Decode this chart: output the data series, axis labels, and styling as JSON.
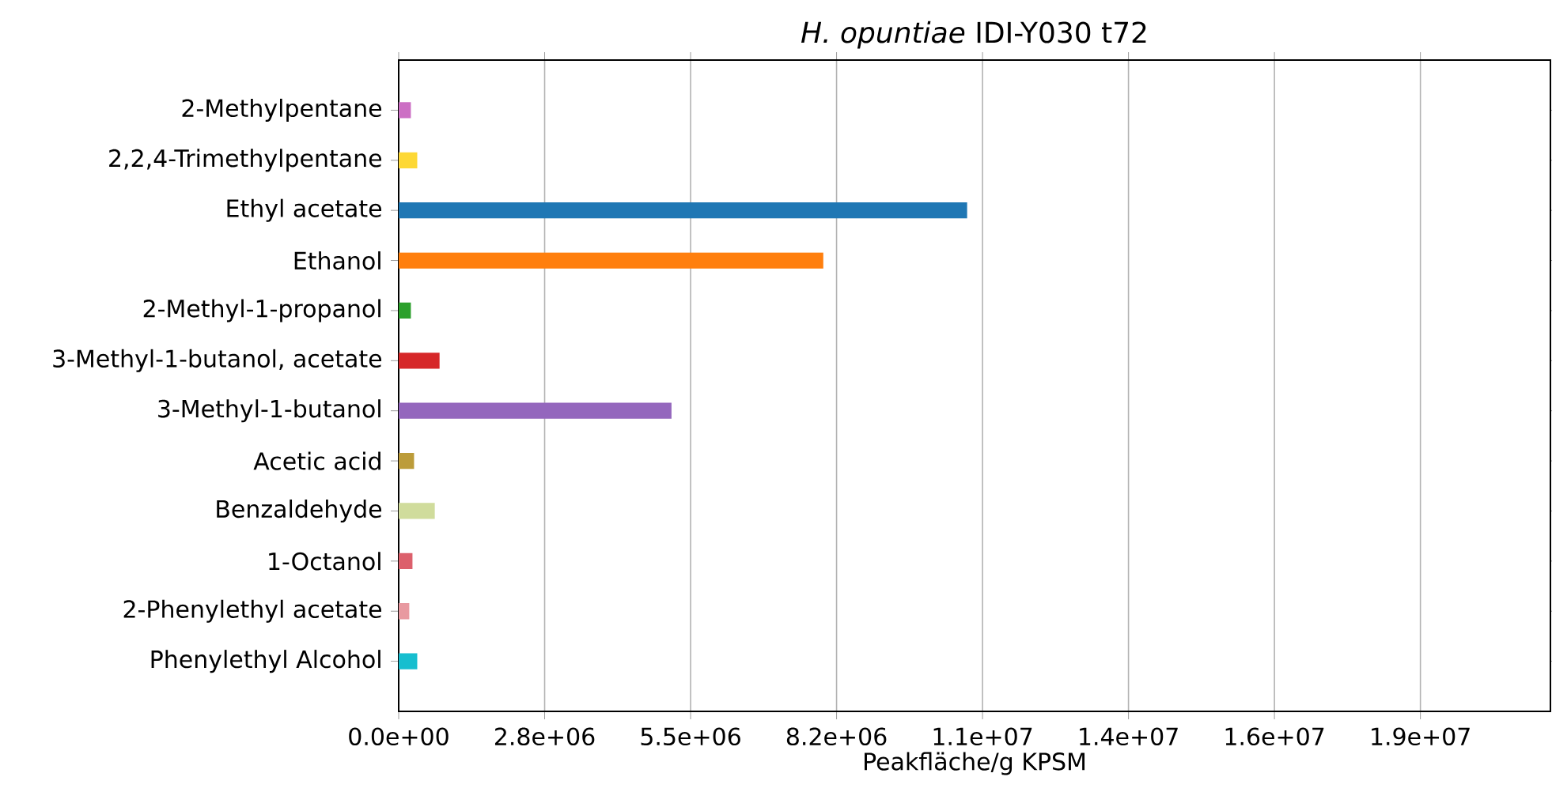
{
  "chart_data": {
    "type": "bar",
    "orientation": "horizontal",
    "title": "*H. opuntiae* IDI-Y030 t72",
    "xlabel": "Peakfläche/g KPSM",
    "categories": [
      "2-Methylpentane",
      "2,2,4-Trimethylpentane",
      "Ethyl acetate",
      "Ethanol",
      "2-Methyl-1-propanol",
      "3-Methyl-1-butanol, acetate",
      "3-Methyl-1-butanol",
      "Acetic acid",
      "Benzaldehyde",
      "1-Octanol",
      "2-Phenylethyl acetate",
      "Phenylethyl Alcohol"
    ],
    "values": [
      230000,
      350000,
      10710000,
      8000000,
      230000,
      770000,
      5140000,
      290000,
      680000,
      260000,
      200000,
      350000
    ],
    "colors": [
      "#cc6fc4",
      "#fdd835",
      "#1f77b4",
      "#ff7f0e",
      "#2ca02c",
      "#d62728",
      "#9467bd",
      "#bc9c3a",
      "#d0dc9c",
      "#dc606c",
      "#e899a0",
      "#17becf"
    ],
    "xlim": [
      0,
      21700000
    ],
    "xticks": [
      {
        "value": 0,
        "label": "0.0e+00"
      },
      {
        "value": 2750000,
        "label": "2.8e+06"
      },
      {
        "value": 5500000,
        "label": "5.5e+06"
      },
      {
        "value": 8250000,
        "label": "8.2e+06"
      },
      {
        "value": 11000000,
        "label": "1.1e+07"
      },
      {
        "value": 13750000,
        "label": "1.4e+07"
      },
      {
        "value": 16500000,
        "label": "1.6e+07"
      },
      {
        "value": 19250000,
        "label": "1.9e+07"
      }
    ],
    "grid": "x"
  }
}
